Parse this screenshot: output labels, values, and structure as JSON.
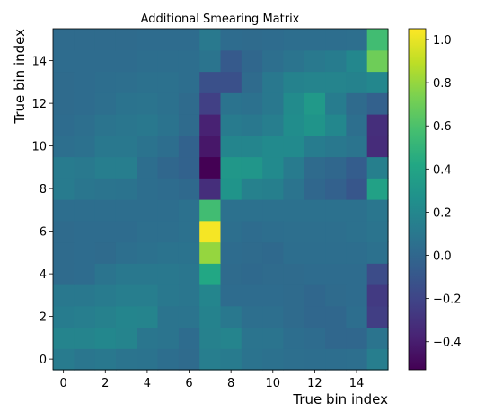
{
  "chart_data": {
    "type": "heatmap",
    "title": "Additional Smearing Matrix",
    "xlabel": "True bin index",
    "ylabel": "True bin index",
    "x_categories": [
      0,
      1,
      2,
      3,
      4,
      5,
      6,
      7,
      8,
      9,
      10,
      11,
      12,
      13,
      14,
      15
    ],
    "y_categories": [
      0,
      1,
      2,
      3,
      4,
      5,
      6,
      7,
      8,
      9,
      10,
      11,
      12,
      13,
      14,
      15
    ],
    "x_ticks": [
      "0",
      "2",
      "4",
      "6",
      "8",
      "10",
      "12",
      "14"
    ],
    "y_ticks": [
      "0",
      "2",
      "4",
      "6",
      "8",
      "10",
      "12",
      "14"
    ],
    "colormap": "viridis",
    "colorbar_range": [
      -0.53,
      1.05
    ],
    "colorbar_ticks": [
      "−0.4",
      "−0.2",
      "0.0",
      "0.2",
      "0.4",
      "0.6",
      "0.8",
      "1.0"
    ],
    "colorbar_tick_values": [
      -0.4,
      -0.2,
      0.0,
      0.2,
      0.4,
      0.6,
      0.8,
      1.0
    ],
    "grid": false,
    "rows": [
      {
        "y": 0,
        "values": [
          0.12,
          0.09,
          0.1,
          0.08,
          0.07,
          0.04,
          0.02,
          0.14,
          0.12,
          0.07,
          0.06,
          0.05,
          0.04,
          0.04,
          0.05,
          0.14
        ]
      },
      {
        "y": 1,
        "values": [
          0.18,
          0.18,
          0.2,
          0.18,
          0.09,
          0.08,
          0.03,
          0.16,
          0.18,
          0.08,
          0.08,
          0.04,
          0.03,
          0.0,
          0.0,
          0.08
        ]
      },
      {
        "y": 2,
        "values": [
          0.13,
          0.14,
          0.16,
          0.19,
          0.18,
          0.08,
          0.08,
          0.17,
          0.1,
          0.05,
          0.05,
          0.02,
          0.0,
          0.0,
          0.04,
          -0.24
        ]
      },
      {
        "y": 3,
        "values": [
          0.1,
          0.1,
          0.12,
          0.14,
          0.14,
          0.1,
          0.09,
          0.19,
          0.03,
          0.03,
          0.03,
          0.02,
          0.0,
          0.02,
          0.03,
          -0.26
        ]
      },
      {
        "y": 4,
        "values": [
          0.02,
          0.03,
          0.08,
          0.1,
          0.1,
          0.1,
          0.09,
          0.42,
          0.02,
          0.01,
          0.02,
          0.02,
          0.03,
          0.03,
          0.03,
          -0.16
        ]
      },
      {
        "y": 5,
        "values": [
          0.02,
          0.03,
          0.02,
          0.05,
          0.06,
          0.07,
          0.07,
          0.8,
          0.03,
          0.02,
          0.01,
          0.04,
          0.04,
          0.04,
          0.04,
          0.06
        ]
      },
      {
        "y": 6,
        "values": [
          0.02,
          0.03,
          0.03,
          0.03,
          0.05,
          0.05,
          0.06,
          1.03,
          0.05,
          0.03,
          0.04,
          0.05,
          0.05,
          0.05,
          0.06,
          0.08
        ]
      },
      {
        "y": 7,
        "values": [
          0.04,
          0.04,
          0.04,
          0.04,
          0.04,
          0.04,
          0.06,
          0.56,
          0.06,
          0.06,
          0.06,
          0.06,
          0.06,
          0.06,
          0.06,
          0.09
        ]
      },
      {
        "y": 8,
        "values": [
          0.12,
          0.09,
          0.08,
          0.07,
          0.04,
          0.03,
          0.01,
          -0.32,
          0.29,
          0.16,
          0.15,
          0.08,
          0.0,
          -0.04,
          -0.1,
          0.38
        ]
      },
      {
        "y": 9,
        "values": [
          0.12,
          0.11,
          0.14,
          0.14,
          0.04,
          0.0,
          -0.03,
          -0.53,
          0.31,
          0.3,
          0.22,
          0.12,
          0.02,
          0.0,
          -0.06,
          0.15
        ]
      },
      {
        "y": 10,
        "values": [
          0.05,
          0.06,
          0.1,
          0.1,
          0.07,
          0.04,
          -0.03,
          -0.43,
          0.19,
          0.19,
          0.22,
          0.22,
          0.13,
          0.1,
          0.08,
          -0.33
        ]
      },
      {
        "y": 11,
        "values": [
          0.03,
          0.05,
          0.08,
          0.09,
          0.1,
          0.07,
          0.02,
          -0.38,
          0.12,
          0.1,
          0.14,
          0.24,
          0.29,
          0.2,
          0.05,
          -0.32
        ]
      },
      {
        "y": 12,
        "values": [
          0.02,
          0.03,
          0.05,
          0.07,
          0.08,
          0.06,
          0.02,
          -0.23,
          0.07,
          0.06,
          0.1,
          0.23,
          0.32,
          0.13,
          0.02,
          -0.04
        ]
      },
      {
        "y": 13,
        "values": [
          0.02,
          0.03,
          0.04,
          0.05,
          0.06,
          0.06,
          0.04,
          -0.14,
          -0.14,
          0.02,
          0.1,
          0.17,
          0.18,
          0.18,
          0.17,
          0.2
        ]
      },
      {
        "y": 14,
        "values": [
          0.03,
          0.03,
          0.03,
          0.03,
          0.04,
          0.04,
          0.04,
          0.08,
          -0.08,
          0.0,
          0.05,
          0.08,
          0.11,
          0.13,
          0.2,
          0.7
        ]
      },
      {
        "y": 15,
        "values": [
          0.02,
          0.02,
          0.02,
          0.02,
          0.03,
          0.03,
          0.03,
          0.11,
          0.03,
          0.02,
          0.03,
          0.04,
          0.04,
          0.04,
          0.05,
          0.56
        ]
      }
    ]
  }
}
